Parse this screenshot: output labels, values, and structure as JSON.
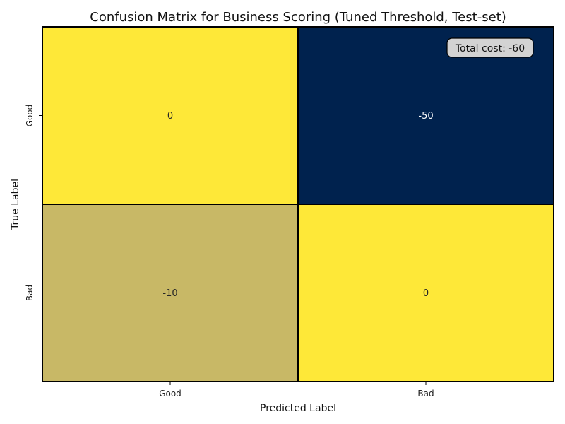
{
  "chart_data": {
    "type": "heatmap",
    "title": "Confusion Matrix for Business Scoring (Tuned Threshold, Test-set)",
    "xlabel": "Predicted Label",
    "ylabel": "True Label",
    "x_categories": [
      "Good",
      "Bad"
    ],
    "y_categories": [
      "Good",
      "Bad"
    ],
    "values": [
      [
        0,
        -50
      ],
      [
        -10,
        0
      ]
    ],
    "value_labels": [
      [
        "0",
        "-50"
      ],
      [
        "-10",
        "0"
      ]
    ],
    "colormap": "cividis",
    "color_range": [
      -50,
      0
    ],
    "colorbar": false,
    "annotation": "Total cost: -60",
    "annotation_placement": "top-right"
  },
  "colors": {
    "max": "#fee838",
    "mid": "#c8b866",
    "min": "#00224e",
    "grid_line": "#000000",
    "annotation_bg": "#d3d3d3"
  }
}
